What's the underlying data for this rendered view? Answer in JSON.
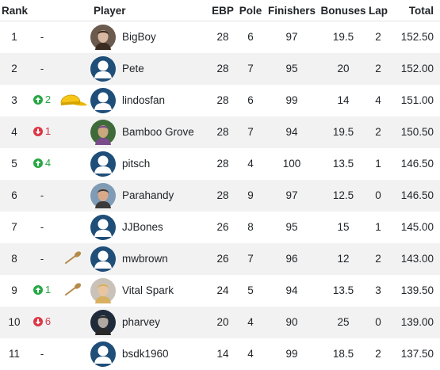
{
  "headers": {
    "rank": "Rank",
    "player": "Player",
    "ebp": "EBP",
    "pole": "Pole",
    "finishers": "Finishers",
    "bonuses": "Bonuses",
    "lap": "Lap",
    "total": "Total"
  },
  "colors": {
    "up": "#28a745",
    "down": "#dc3545",
    "default_avatar": "#1f4e79",
    "cap": "#f5c518",
    "spoon": "#b58a4a"
  },
  "rows": [
    {
      "rank": "1",
      "move_dir": "none",
      "move_text": "-",
      "badge": "",
      "avatar": "photo",
      "player": "BigBoy",
      "ebp": "28",
      "pole": "6",
      "finishers": "97",
      "bonuses": "19.5",
      "lap": "2",
      "total": "152.50"
    },
    {
      "rank": "2",
      "move_dir": "none",
      "move_text": "-",
      "badge": "",
      "avatar": "default-user",
      "player": "Pete",
      "ebp": "28",
      "pole": "7",
      "finishers": "95",
      "bonuses": "20",
      "lap": "2",
      "total": "152.00"
    },
    {
      "rank": "3",
      "move_dir": "up",
      "move_text": "2",
      "badge": "yellow-cap",
      "avatar": "default-user",
      "player": "lindosfan",
      "ebp": "28",
      "pole": "6",
      "finishers": "99",
      "bonuses": "14",
      "lap": "4",
      "total": "151.00"
    },
    {
      "rank": "4",
      "move_dir": "down",
      "move_text": "1",
      "badge": "",
      "avatar": "photo",
      "player": "Bamboo Grove",
      "ebp": "28",
      "pole": "7",
      "finishers": "94",
      "bonuses": "19.5",
      "lap": "2",
      "total": "150.50"
    },
    {
      "rank": "5",
      "move_dir": "up",
      "move_text": "4",
      "badge": "",
      "avatar": "default-user",
      "player": "pitsch",
      "ebp": "28",
      "pole": "4",
      "finishers": "100",
      "bonuses": "13.5",
      "lap": "1",
      "total": "146.50"
    },
    {
      "rank": "6",
      "move_dir": "none",
      "move_text": "-",
      "badge": "",
      "avatar": "photo",
      "player": "Parahandy",
      "ebp": "28",
      "pole": "9",
      "finishers": "97",
      "bonuses": "12.5",
      "lap": "0",
      "total": "146.50"
    },
    {
      "rank": "7",
      "move_dir": "none",
      "move_text": "-",
      "badge": "",
      "avatar": "default-user",
      "player": "JJBones",
      "ebp": "26",
      "pole": "8",
      "finishers": "95",
      "bonuses": "15",
      "lap": "1",
      "total": "145.00"
    },
    {
      "rank": "8",
      "move_dir": "none",
      "move_text": "-",
      "badge": "wooden-spoon",
      "avatar": "default-user",
      "player": "mwbrown",
      "ebp": "26",
      "pole": "7",
      "finishers": "96",
      "bonuses": "12",
      "lap": "2",
      "total": "143.00"
    },
    {
      "rank": "9",
      "move_dir": "up",
      "move_text": "1",
      "badge": "wooden-spoon",
      "avatar": "photo",
      "player": "Vital Spark",
      "ebp": "24",
      "pole": "5",
      "finishers": "94",
      "bonuses": "13.5",
      "lap": "3",
      "total": "139.50"
    },
    {
      "rank": "10",
      "move_dir": "down",
      "move_text": "6",
      "badge": "",
      "avatar": "photo",
      "player": "pharvey",
      "ebp": "20",
      "pole": "4",
      "finishers": "90",
      "bonuses": "25",
      "lap": "0",
      "total": "139.00"
    },
    {
      "rank": "11",
      "move_dir": "none",
      "move_text": "-",
      "badge": "",
      "avatar": "default-user",
      "player": "bsdk1960",
      "ebp": "14",
      "pole": "4",
      "finishers": "99",
      "bonuses": "18.5",
      "lap": "2",
      "total": "137.50"
    }
  ]
}
